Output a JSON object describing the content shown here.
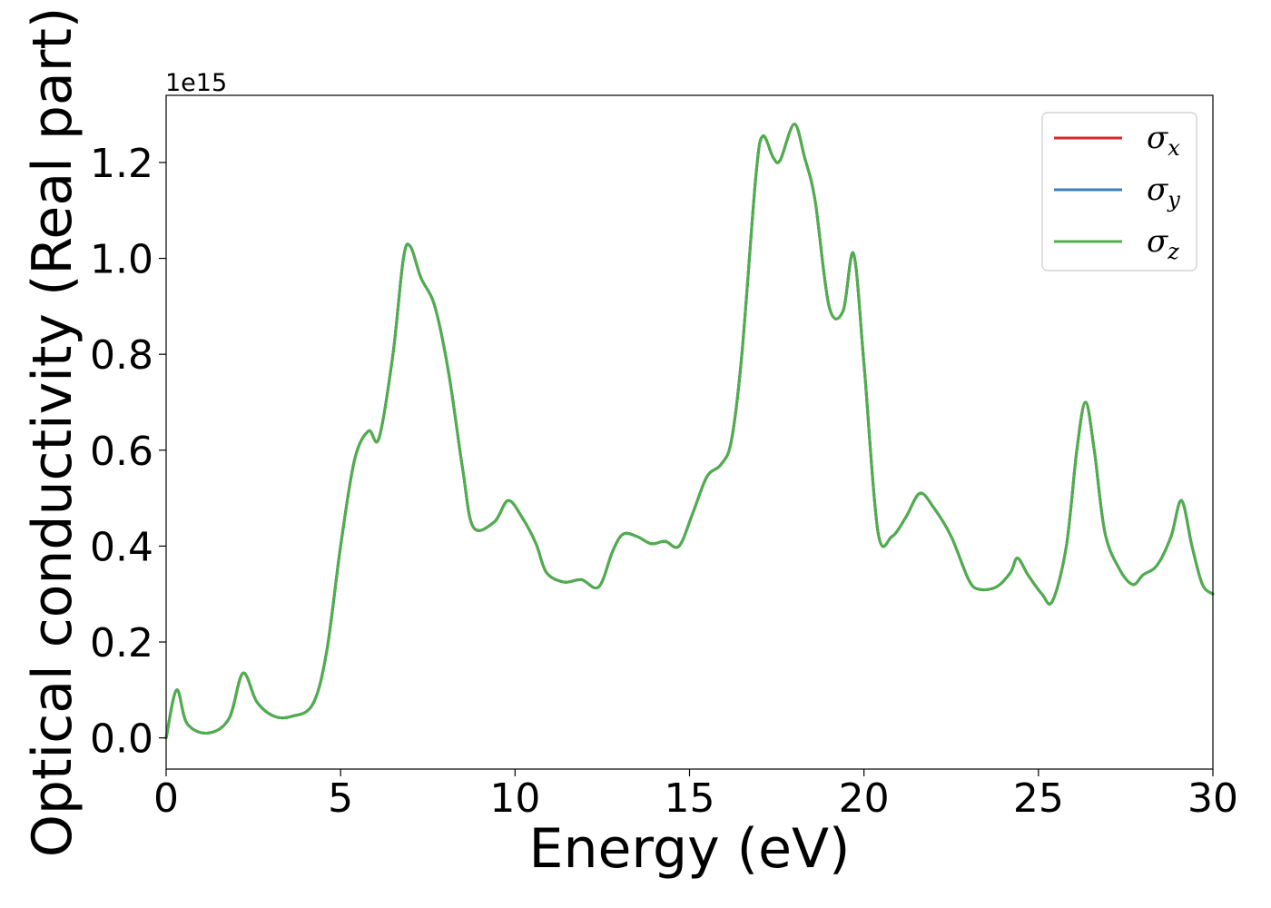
{
  "chart_data": {
    "type": "line",
    "xlabel": "Energy (eV)",
    "ylabel": "Optical conductivity (Real part)",
    "y_offset_label": "1e15",
    "xlim": [
      0,
      30
    ],
    "ylim": [
      -0.065,
      1.34
    ],
    "x_ticks": [
      0,
      5,
      10,
      15,
      20,
      25,
      30
    ],
    "x_tick_labels": [
      "0",
      "5",
      "10",
      "15",
      "20",
      "25",
      "30"
    ],
    "y_ticks": [
      0.0,
      0.2,
      0.4,
      0.6,
      0.8,
      1.0,
      1.2
    ],
    "y_tick_labels": [
      "0.0",
      "0.2",
      "0.4",
      "0.6",
      "0.8",
      "1.0",
      "1.2"
    ],
    "grid": false,
    "legend_position": "top-right",
    "series": [
      {
        "name": "σx",
        "name_base": "σ",
        "name_sub": "x",
        "color": "#d62728",
        "points": [
          [
            0,
            0
          ],
          [
            0.3,
            0.1
          ],
          [
            0.6,
            0.03
          ],
          [
            1.2,
            0.01
          ],
          [
            1.8,
            0.04
          ],
          [
            2.2,
            0.135
          ],
          [
            2.6,
            0.075
          ],
          [
            3.1,
            0.045
          ],
          [
            3.6,
            0.045
          ],
          [
            4.2,
            0.07
          ],
          [
            4.6,
            0.18
          ],
          [
            5.0,
            0.4
          ],
          [
            5.4,
            0.58
          ],
          [
            5.8,
            0.64
          ],
          [
            6.1,
            0.625
          ],
          [
            6.5,
            0.8
          ],
          [
            6.8,
            1.0
          ],
          [
            7.0,
            1.025
          ],
          [
            7.3,
            0.96
          ],
          [
            7.7,
            0.9
          ],
          [
            8.1,
            0.76
          ],
          [
            8.5,
            0.56
          ],
          [
            8.8,
            0.44
          ],
          [
            9.4,
            0.45
          ],
          [
            9.8,
            0.495
          ],
          [
            10.2,
            0.46
          ],
          [
            10.6,
            0.405
          ],
          [
            10.9,
            0.345
          ],
          [
            11.4,
            0.325
          ],
          [
            11.9,
            0.33
          ],
          [
            12.4,
            0.315
          ],
          [
            12.8,
            0.39
          ],
          [
            13.1,
            0.425
          ],
          [
            13.5,
            0.42
          ],
          [
            13.9,
            0.405
          ],
          [
            14.3,
            0.41
          ],
          [
            14.7,
            0.4
          ],
          [
            15.1,
            0.47
          ],
          [
            15.5,
            0.545
          ],
          [
            15.9,
            0.57
          ],
          [
            16.2,
            0.62
          ],
          [
            16.5,
            0.8
          ],
          [
            16.9,
            1.17
          ],
          [
            17.1,
            1.255
          ],
          [
            17.4,
            1.21
          ],
          [
            17.6,
            1.205
          ],
          [
            18.0,
            1.28
          ],
          [
            18.3,
            1.21
          ],
          [
            18.6,
            1.12
          ],
          [
            19.0,
            0.9
          ],
          [
            19.4,
            0.89
          ],
          [
            19.7,
            1.01
          ],
          [
            20.0,
            0.78
          ],
          [
            20.4,
            0.43
          ],
          [
            20.8,
            0.42
          ],
          [
            21.2,
            0.46
          ],
          [
            21.6,
            0.51
          ],
          [
            22.0,
            0.48
          ],
          [
            22.5,
            0.42
          ],
          [
            23.0,
            0.33
          ],
          [
            23.3,
            0.31
          ],
          [
            23.8,
            0.315
          ],
          [
            24.2,
            0.345
          ],
          [
            24.4,
            0.375
          ],
          [
            24.7,
            0.34
          ],
          [
            25.1,
            0.3
          ],
          [
            25.4,
            0.285
          ],
          [
            25.8,
            0.4
          ],
          [
            26.1,
            0.6
          ],
          [
            26.35,
            0.7
          ],
          [
            26.6,
            0.6
          ],
          [
            26.9,
            0.43
          ],
          [
            27.3,
            0.355
          ],
          [
            27.7,
            0.32
          ],
          [
            28.0,
            0.34
          ],
          [
            28.4,
            0.36
          ],
          [
            28.8,
            0.42
          ],
          [
            29.1,
            0.495
          ],
          [
            29.4,
            0.4
          ],
          [
            29.7,
            0.32
          ],
          [
            30.0,
            0.3
          ]
        ]
      },
      {
        "name": "σy",
        "name_base": "σ",
        "name_sub": "y",
        "color": "#3a7fc1",
        "points": [
          [
            0,
            0
          ],
          [
            0.3,
            0.1
          ],
          [
            0.6,
            0.03
          ],
          [
            1.2,
            0.01
          ],
          [
            1.8,
            0.04
          ],
          [
            2.2,
            0.135
          ],
          [
            2.6,
            0.075
          ],
          [
            3.1,
            0.045
          ],
          [
            3.6,
            0.045
          ],
          [
            4.2,
            0.07
          ],
          [
            4.6,
            0.18
          ],
          [
            5.0,
            0.4
          ],
          [
            5.4,
            0.58
          ],
          [
            5.8,
            0.64
          ],
          [
            6.1,
            0.625
          ],
          [
            6.5,
            0.8
          ],
          [
            6.8,
            1.0
          ],
          [
            7.0,
            1.025
          ],
          [
            7.3,
            0.96
          ],
          [
            7.7,
            0.9
          ],
          [
            8.1,
            0.76
          ],
          [
            8.5,
            0.56
          ],
          [
            8.8,
            0.44
          ],
          [
            9.4,
            0.45
          ],
          [
            9.8,
            0.495
          ],
          [
            10.2,
            0.46
          ],
          [
            10.6,
            0.405
          ],
          [
            10.9,
            0.345
          ],
          [
            11.4,
            0.325
          ],
          [
            11.9,
            0.33
          ],
          [
            12.4,
            0.315
          ],
          [
            12.8,
            0.39
          ],
          [
            13.1,
            0.425
          ],
          [
            13.5,
            0.42
          ],
          [
            13.9,
            0.405
          ],
          [
            14.3,
            0.41
          ],
          [
            14.7,
            0.4
          ],
          [
            15.1,
            0.47
          ],
          [
            15.5,
            0.545
          ],
          [
            15.9,
            0.57
          ],
          [
            16.2,
            0.62
          ],
          [
            16.5,
            0.8
          ],
          [
            16.9,
            1.17
          ],
          [
            17.1,
            1.255
          ],
          [
            17.4,
            1.21
          ],
          [
            17.6,
            1.205
          ],
          [
            18.0,
            1.28
          ],
          [
            18.3,
            1.21
          ],
          [
            18.6,
            1.12
          ],
          [
            19.0,
            0.9
          ],
          [
            19.4,
            0.89
          ],
          [
            19.7,
            1.01
          ],
          [
            20.0,
            0.78
          ],
          [
            20.4,
            0.43
          ],
          [
            20.8,
            0.42
          ],
          [
            21.2,
            0.46
          ],
          [
            21.6,
            0.51
          ],
          [
            22.0,
            0.48
          ],
          [
            22.5,
            0.42
          ],
          [
            23.0,
            0.33
          ],
          [
            23.3,
            0.31
          ],
          [
            23.8,
            0.315
          ],
          [
            24.2,
            0.345
          ],
          [
            24.4,
            0.375
          ],
          [
            24.7,
            0.34
          ],
          [
            25.1,
            0.3
          ],
          [
            25.4,
            0.285
          ],
          [
            25.8,
            0.4
          ],
          [
            26.1,
            0.6
          ],
          [
            26.35,
            0.7
          ],
          [
            26.6,
            0.6
          ],
          [
            26.9,
            0.43
          ],
          [
            27.3,
            0.355
          ],
          [
            27.7,
            0.32
          ],
          [
            28.0,
            0.34
          ],
          [
            28.4,
            0.36
          ],
          [
            28.8,
            0.42
          ],
          [
            29.1,
            0.495
          ],
          [
            29.4,
            0.4
          ],
          [
            29.7,
            0.32
          ],
          [
            30.0,
            0.3
          ]
        ]
      },
      {
        "name": "σz",
        "name_base": "σ",
        "name_sub": "z",
        "color": "#4daf4a",
        "points": [
          [
            0,
            0
          ],
          [
            0.3,
            0.1
          ],
          [
            0.6,
            0.03
          ],
          [
            1.2,
            0.01
          ],
          [
            1.8,
            0.04
          ],
          [
            2.2,
            0.135
          ],
          [
            2.6,
            0.075
          ],
          [
            3.1,
            0.045
          ],
          [
            3.6,
            0.045
          ],
          [
            4.2,
            0.07
          ],
          [
            4.6,
            0.18
          ],
          [
            5.0,
            0.4
          ],
          [
            5.4,
            0.58
          ],
          [
            5.8,
            0.64
          ],
          [
            6.1,
            0.625
          ],
          [
            6.5,
            0.8
          ],
          [
            6.8,
            1.0
          ],
          [
            7.0,
            1.025
          ],
          [
            7.3,
            0.96
          ],
          [
            7.7,
            0.9
          ],
          [
            8.1,
            0.76
          ],
          [
            8.5,
            0.56
          ],
          [
            8.8,
            0.44
          ],
          [
            9.4,
            0.45
          ],
          [
            9.8,
            0.495
          ],
          [
            10.2,
            0.46
          ],
          [
            10.6,
            0.405
          ],
          [
            10.9,
            0.345
          ],
          [
            11.4,
            0.325
          ],
          [
            11.9,
            0.33
          ],
          [
            12.4,
            0.315
          ],
          [
            12.8,
            0.39
          ],
          [
            13.1,
            0.425
          ],
          [
            13.5,
            0.42
          ],
          [
            13.9,
            0.405
          ],
          [
            14.3,
            0.41
          ],
          [
            14.7,
            0.4
          ],
          [
            15.1,
            0.47
          ],
          [
            15.5,
            0.545
          ],
          [
            15.9,
            0.57
          ],
          [
            16.2,
            0.62
          ],
          [
            16.5,
            0.8
          ],
          [
            16.9,
            1.17
          ],
          [
            17.1,
            1.255
          ],
          [
            17.4,
            1.21
          ],
          [
            17.6,
            1.205
          ],
          [
            18.0,
            1.28
          ],
          [
            18.3,
            1.21
          ],
          [
            18.6,
            1.12
          ],
          [
            19.0,
            0.9
          ],
          [
            19.4,
            0.89
          ],
          [
            19.7,
            1.01
          ],
          [
            20.0,
            0.78
          ],
          [
            20.4,
            0.43
          ],
          [
            20.8,
            0.42
          ],
          [
            21.2,
            0.46
          ],
          [
            21.6,
            0.51
          ],
          [
            22.0,
            0.48
          ],
          [
            22.5,
            0.42
          ],
          [
            23.0,
            0.33
          ],
          [
            23.3,
            0.31
          ],
          [
            23.8,
            0.315
          ],
          [
            24.2,
            0.345
          ],
          [
            24.4,
            0.375
          ],
          [
            24.7,
            0.34
          ],
          [
            25.1,
            0.3
          ],
          [
            25.4,
            0.285
          ],
          [
            25.8,
            0.4
          ],
          [
            26.1,
            0.6
          ],
          [
            26.35,
            0.7
          ],
          [
            26.6,
            0.6
          ],
          [
            26.9,
            0.43
          ],
          [
            27.3,
            0.355
          ],
          [
            27.7,
            0.32
          ],
          [
            28.0,
            0.34
          ],
          [
            28.4,
            0.36
          ],
          [
            28.8,
            0.42
          ],
          [
            29.1,
            0.495
          ],
          [
            29.4,
            0.4
          ],
          [
            29.7,
            0.32
          ],
          [
            30.0,
            0.3
          ]
        ]
      }
    ]
  }
}
